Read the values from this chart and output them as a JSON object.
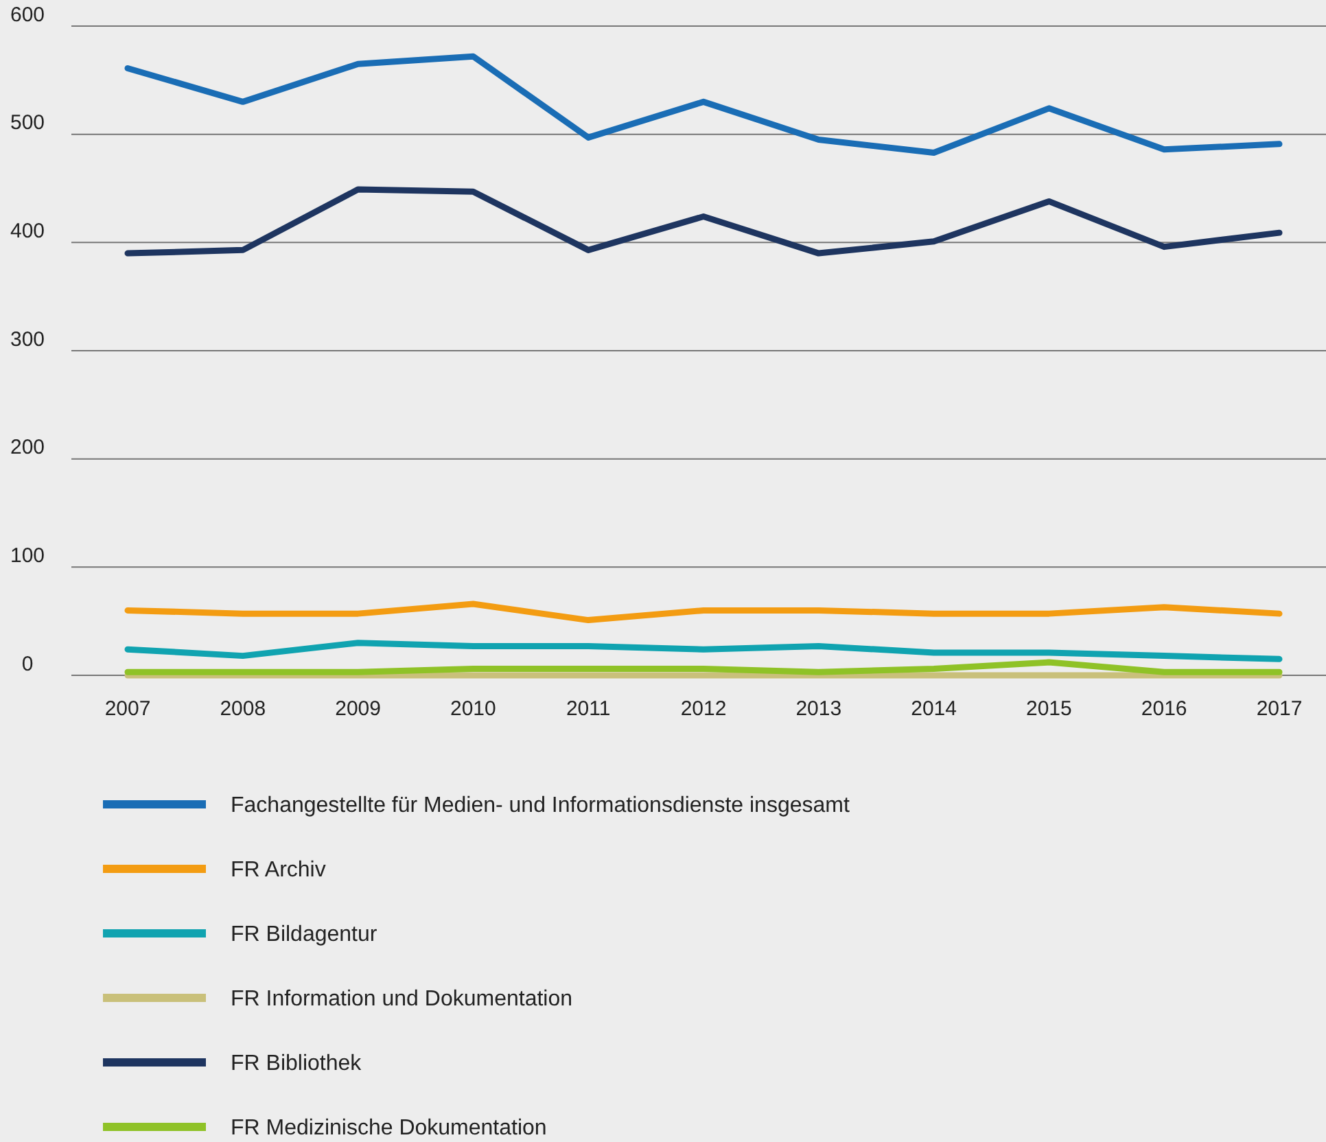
{
  "chart_data": {
    "type": "line",
    "categories": [
      "2007",
      "2008",
      "2009",
      "2010",
      "2011",
      "2012",
      "2013",
      "2014",
      "2015",
      "2016",
      "2017"
    ],
    "series": [
      {
        "name": "Fachangestellte für Medien- und Informationsdienste insgesamt",
        "color": "#1a6db5",
        "values": [
          561,
          530,
          565,
          572,
          497,
          530,
          495,
          483,
          524,
          486,
          491
        ]
      },
      {
        "name": "FR Archiv",
        "color": "#f39c12",
        "values": [
          60,
          57,
          57,
          66,
          51,
          60,
          60,
          57,
          57,
          63,
          57
        ]
      },
      {
        "name": "FR Bildagentur",
        "color": "#10a3b0",
        "values": [
          24,
          18,
          30,
          27,
          27,
          24,
          27,
          21,
          21,
          18,
          15
        ]
      },
      {
        "name": "FR Information und Dokumentation",
        "color": "#c9c07a",
        "values": [
          0,
          0,
          0,
          0,
          0,
          0,
          0,
          0,
          0,
          0,
          0
        ]
      },
      {
        "name": "FR Bibliothek",
        "color": "#1e3560",
        "values": [
          390,
          393,
          449,
          447,
          393,
          424,
          390,
          401,
          438,
          396,
          409
        ]
      },
      {
        "name": "FR Medizinische Dokumentation",
        "color": "#8fc227",
        "values": [
          3,
          3,
          3,
          6,
          6,
          6,
          3,
          6,
          12,
          3,
          3
        ]
      }
    ],
    "ylim": [
      0,
      600
    ],
    "yticks": [
      0,
      100,
      200,
      300,
      400,
      500,
      600
    ],
    "grid": "y",
    "legend": "bottom",
    "marker": "none",
    "line_style": "solid"
  }
}
